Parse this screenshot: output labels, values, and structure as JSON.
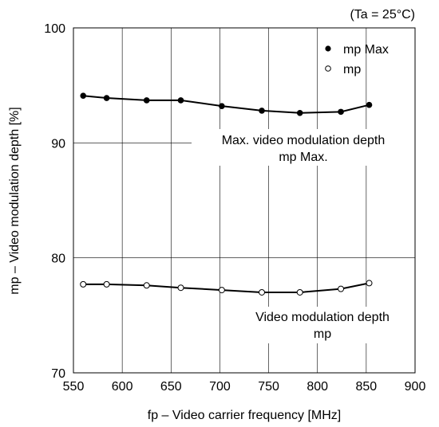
{
  "chart_data": {
    "type": "line",
    "condition_note": "(Ta = 25°C)",
    "xlabel": "fp – Video carrier frequency [MHz]",
    "ylabel": "mp – Video modulation depth [%]",
    "xlim": [
      550,
      900
    ],
    "ylim": [
      70,
      100
    ],
    "x_ticks": [
      550,
      600,
      650,
      700,
      750,
      800,
      850,
      900
    ],
    "y_ticks": [
      70,
      80,
      90,
      100
    ],
    "x_tick_labels": [
      "550",
      "600",
      "650",
      "700",
      "750",
      "800",
      "850",
      "900"
    ],
    "y_tick_labels": [
      "70",
      "80",
      "90",
      "100"
    ],
    "grid": true,
    "legend_position": "top-right",
    "series": [
      {
        "name": "mp Max",
        "marker": "filled-circle",
        "x": [
          560,
          584,
          625,
          660,
          702,
          743,
          782,
          824,
          853
        ],
        "y": [
          94.1,
          93.9,
          93.7,
          93.7,
          93.2,
          92.8,
          92.6,
          92.7,
          93.3
        ],
        "annotation_line1": "Max. video modulation depth",
        "annotation_line2": "mp Max."
      },
      {
        "name": "mp",
        "marker": "open-circle",
        "x": [
          560,
          584,
          625,
          660,
          702,
          743,
          782,
          824,
          853
        ],
        "y": [
          77.7,
          77.7,
          77.6,
          77.4,
          77.2,
          77.0,
          77.0,
          77.3,
          77.8
        ],
        "annotation_line1": "Video modulation depth",
        "annotation_line2": "mp"
      }
    ]
  }
}
